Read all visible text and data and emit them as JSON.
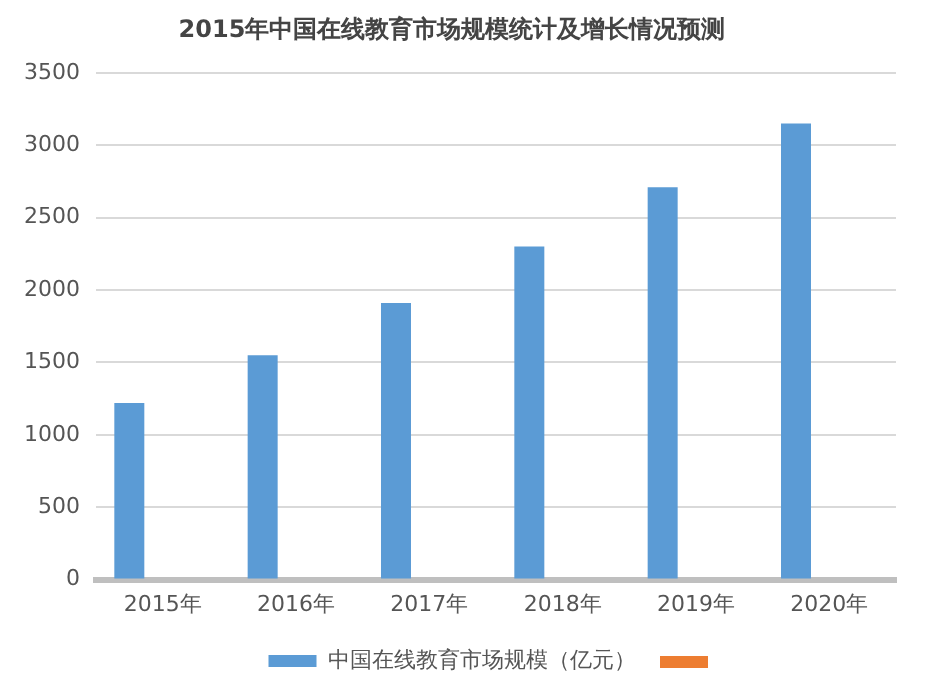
{
  "chart_data": {
    "type": "bar",
    "title": "2015年中国在线教育市场规模统计及增长情况预测",
    "categories": [
      "2015年",
      "2016年",
      "2017年",
      "2018年",
      "2019年",
      "2020年"
    ],
    "series": [
      {
        "name": "中国在线教育市场规模（亿元）",
        "color": "#5b9bd5",
        "values": [
          1220,
          1550,
          1910,
          2300,
          2710,
          3150
        ]
      },
      {
        "color": "#ed7d31",
        "values": [
          0,
          0,
          0,
          0,
          0,
          0
        ]
      }
    ],
    "ylim": [
      0,
      3500
    ],
    "yticks": [
      0,
      500,
      1000,
      1500,
      2000,
      2500,
      3000,
      3500
    ],
    "grid": "y",
    "legend": "bottom"
  }
}
